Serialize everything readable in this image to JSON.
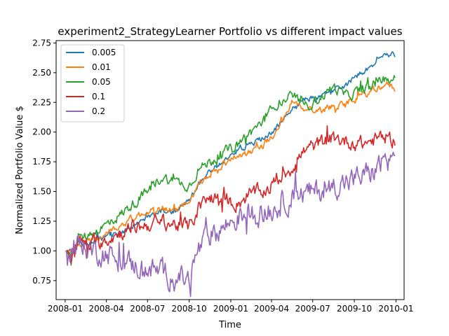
{
  "chart_data": {
    "type": "line",
    "title": "experiment2_StrategyLearner Portfolio vs different impact values",
    "xlabel": "Time",
    "ylabel": "Normalized Portfolio Value $",
    "xlim": [
      "2007-12-12",
      "2010-01-19"
    ],
    "ylim": [
      0.59,
      2.77
    ],
    "x_ticks": [
      {
        "date": "2008-01-01",
        "label": "2008-01"
      },
      {
        "date": "2008-04-01",
        "label": "2008-04"
      },
      {
        "date": "2008-07-01",
        "label": "2008-07"
      },
      {
        "date": "2008-10-01",
        "label": "2008-10"
      },
      {
        "date": "2009-01-01",
        "label": "2009-01"
      },
      {
        "date": "2009-04-01",
        "label": "2009-04"
      },
      {
        "date": "2009-07-01",
        "label": "2009-07"
      },
      {
        "date": "2009-10-01",
        "label": "2009-10"
      },
      {
        "date": "2010-01-01",
        "label": "2010-01"
      }
    ],
    "y_ticks": [
      {
        "value": 0.75,
        "label": "0.75"
      },
      {
        "value": 1.0,
        "label": "1.00"
      },
      {
        "value": 1.25,
        "label": "1.25"
      },
      {
        "value": 1.5,
        "label": "1.50"
      },
      {
        "value": 1.75,
        "label": "1.75"
      },
      {
        "value": 2.0,
        "label": "2.00"
      },
      {
        "value": 2.25,
        "label": "2.25"
      },
      {
        "value": 2.5,
        "label": "2.50"
      },
      {
        "value": 2.75,
        "label": "2.75"
      }
    ],
    "grid": false,
    "legend_position": "top-left",
    "series": [
      {
        "name": "0.005",
        "color": "#1f77b4",
        "x": [
          "2008-01-02",
          "2008-01-15",
          "2008-02-01",
          "2008-03-01",
          "2008-04-01",
          "2008-05-01",
          "2008-06-01",
          "2008-07-01",
          "2008-08-01",
          "2008-09-01",
          "2008-10-01",
          "2008-10-20",
          "2008-11-15",
          "2008-12-15",
          "2009-01-15",
          "2009-02-15",
          "2009-03-15",
          "2009-04-15",
          "2009-05-15",
          "2009-06-15",
          "2009-07-15",
          "2009-08-15",
          "2009-09-15",
          "2009-10-15",
          "2009-11-15",
          "2009-12-05",
          "2009-12-31"
        ],
        "y": [
          1.0,
          0.98,
          1.05,
          1.08,
          1.12,
          1.15,
          1.22,
          1.28,
          1.33,
          1.34,
          1.42,
          1.55,
          1.68,
          1.74,
          1.85,
          1.9,
          1.95,
          2.05,
          2.2,
          2.28,
          2.3,
          2.35,
          2.4,
          2.5,
          2.55,
          2.67,
          2.65
        ],
        "noise": 0.02
      },
      {
        "name": "0.01",
        "color": "#ff7f0e",
        "x": [
          "2008-01-02",
          "2008-01-15",
          "2008-02-01",
          "2008-03-01",
          "2008-04-01",
          "2008-05-01",
          "2008-06-01",
          "2008-07-01",
          "2008-08-01",
          "2008-09-01",
          "2008-10-01",
          "2008-10-20",
          "2008-11-15",
          "2008-12-15",
          "2009-01-15",
          "2009-02-15",
          "2009-03-15",
          "2009-04-15",
          "2009-05-15",
          "2009-06-15",
          "2009-07-15",
          "2009-08-15",
          "2009-09-15",
          "2009-10-15",
          "2009-11-15",
          "2009-12-05",
          "2009-12-31"
        ],
        "y": [
          1.0,
          0.98,
          1.07,
          1.1,
          1.15,
          1.22,
          1.28,
          1.33,
          1.36,
          1.35,
          1.38,
          1.55,
          1.62,
          1.74,
          1.8,
          1.84,
          1.9,
          2.0,
          2.25,
          2.2,
          2.18,
          2.22,
          2.25,
          2.3,
          2.35,
          2.41,
          2.37
        ],
        "noise": 0.025
      },
      {
        "name": "0.05",
        "color": "#2ca02c",
        "x": [
          "2008-01-02",
          "2008-01-15",
          "2008-02-01",
          "2008-03-01",
          "2008-04-01",
          "2008-05-01",
          "2008-06-01",
          "2008-07-01",
          "2008-08-01",
          "2008-09-01",
          "2008-10-01",
          "2008-10-20",
          "2008-11-15",
          "2008-12-15",
          "2009-01-15",
          "2009-02-15",
          "2009-03-15",
          "2009-04-15",
          "2009-05-15",
          "2009-06-15",
          "2009-07-15",
          "2009-08-15",
          "2009-09-15",
          "2009-10-15",
          "2009-11-15",
          "2009-12-05",
          "2009-12-31"
        ],
        "y": [
          1.0,
          0.98,
          1.1,
          1.15,
          1.22,
          1.3,
          1.4,
          1.5,
          1.62,
          1.58,
          1.55,
          1.68,
          1.75,
          1.82,
          1.9,
          2.0,
          2.1,
          2.25,
          2.3,
          2.22,
          2.28,
          2.38,
          2.3,
          2.35,
          2.4,
          2.45,
          2.45
        ],
        "noise": 0.035
      },
      {
        "name": "0.1",
        "color": "#d62728",
        "x": [
          "2008-01-02",
          "2008-01-15",
          "2008-02-01",
          "2008-03-01",
          "2008-04-01",
          "2008-05-01",
          "2008-06-01",
          "2008-07-01",
          "2008-08-01",
          "2008-09-01",
          "2008-10-01",
          "2008-10-20",
          "2008-11-15",
          "2008-12-15",
          "2009-01-15",
          "2009-02-15",
          "2009-03-15",
          "2009-04-15",
          "2009-05-15",
          "2009-06-15",
          "2009-07-15",
          "2009-08-15",
          "2009-09-15",
          "2009-10-15",
          "2009-11-15",
          "2009-12-05",
          "2009-12-31"
        ],
        "y": [
          1.0,
          0.97,
          1.08,
          1.05,
          1.1,
          1.15,
          1.2,
          1.22,
          1.25,
          1.22,
          1.2,
          1.35,
          1.45,
          1.42,
          1.4,
          1.48,
          1.5,
          1.6,
          1.7,
          1.85,
          1.9,
          1.95,
          1.92,
          1.9,
          1.93,
          1.97,
          1.93
        ],
        "noise": 0.05
      },
      {
        "name": "0.2",
        "color": "#9467bd",
        "x": [
          "2008-01-02",
          "2008-01-15",
          "2008-02-01",
          "2008-03-01",
          "2008-04-01",
          "2008-05-01",
          "2008-06-01",
          "2008-07-01",
          "2008-08-01",
          "2008-09-01",
          "2008-10-01",
          "2008-10-20",
          "2008-11-15",
          "2008-12-15",
          "2009-01-15",
          "2009-02-15",
          "2009-03-15",
          "2009-04-15",
          "2009-05-15",
          "2009-06-15",
          "2009-07-15",
          "2009-08-15",
          "2009-09-15",
          "2009-10-15",
          "2009-11-15",
          "2009-12-05",
          "2009-12-31"
        ],
        "y": [
          1.0,
          0.97,
          1.05,
          1.0,
          0.98,
          0.92,
          0.88,
          0.85,
          0.82,
          0.78,
          0.75,
          1.0,
          1.12,
          1.2,
          1.28,
          1.32,
          1.3,
          1.38,
          1.45,
          1.48,
          1.5,
          1.55,
          1.58,
          1.62,
          1.68,
          1.76,
          1.76
        ],
        "noise": 0.08
      }
    ]
  }
}
